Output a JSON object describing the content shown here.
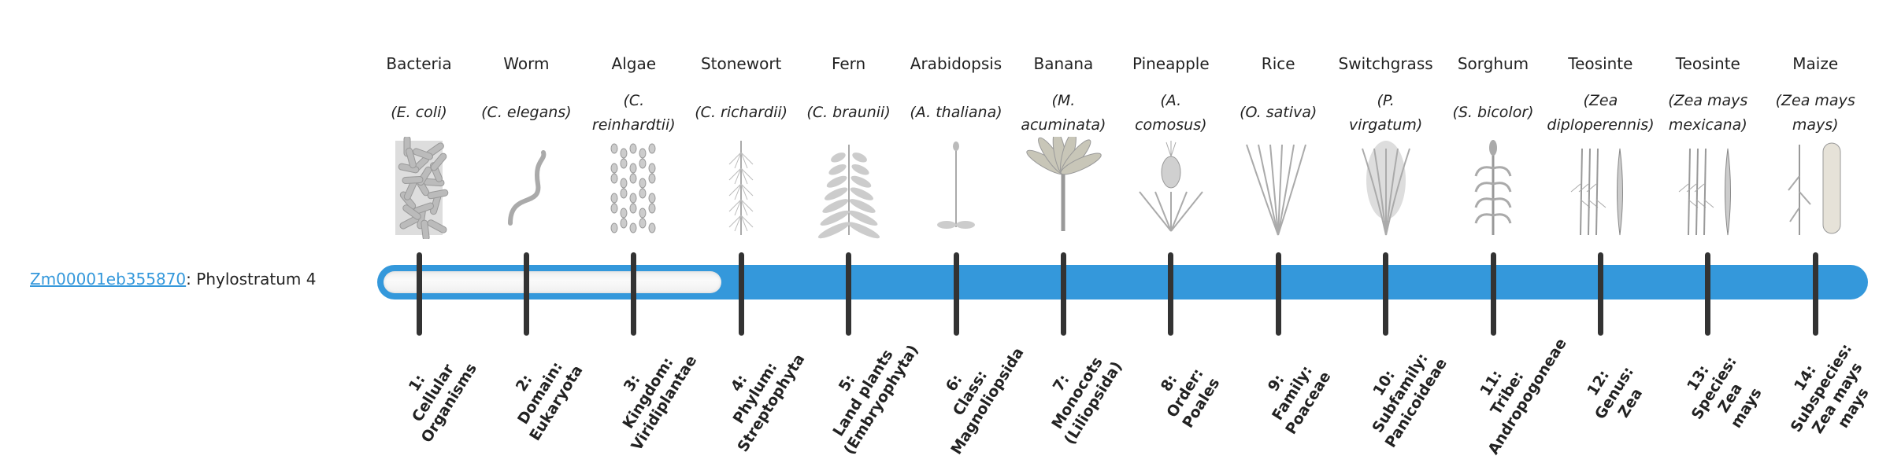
{
  "gene": {
    "id": "Zm00001eb355870",
    "suffix": ": Phylostratum 4"
  },
  "phylostratum": {
    "value": 4,
    "max": 14
  },
  "colors": {
    "bar": "#3498db",
    "tick": "#333333",
    "link": "#3498db"
  },
  "strata": [
    {
      "common": "Bacteria",
      "species": [
        "(E. coli)"
      ],
      "icon": "bacteria-illustration",
      "rank": [
        "1:",
        "Cellular",
        "Organisms"
      ]
    },
    {
      "common": "Worm",
      "species": [
        "(C. elegans)"
      ],
      "icon": "worm-illustration",
      "rank": [
        "2:",
        "Domain:",
        "Eukaryota"
      ]
    },
    {
      "common": "Algae",
      "species": [
        "(C.",
        "reinhardtii)"
      ],
      "icon": "algae-illustration",
      "rank": [
        "3:",
        "Kingdom:",
        "Viridiplantae"
      ]
    },
    {
      "common": "Stonewort",
      "species": [
        "(C. richardii)"
      ],
      "icon": "stonewort-illustration",
      "rank": [
        "4:",
        "Phylum:",
        "Streptophyta"
      ]
    },
    {
      "common": "Fern",
      "species": [
        "(C. braunii)"
      ],
      "icon": "fern-illustration",
      "rank": [
        "5:",
        "Land plants",
        "(Embryophyta)"
      ]
    },
    {
      "common": "Arabidopsis",
      "species": [
        "(A. thaliana)"
      ],
      "icon": "arabidopsis-illustration",
      "rank": [
        "6:",
        "Class:",
        "Magnoliopsida"
      ]
    },
    {
      "common": "Banana",
      "species": [
        "(M.",
        "acuminata)"
      ],
      "icon": "banana-illustration",
      "rank": [
        "7:",
        "Monocots",
        "(Liliopsida)"
      ]
    },
    {
      "common": "Pineapple",
      "species": [
        "(A.",
        "comosus)"
      ],
      "icon": "pineapple-illustration",
      "rank": [
        "8:",
        "Order:",
        "Poales"
      ]
    },
    {
      "common": "Rice",
      "species": [
        "(O. sativa)"
      ],
      "icon": "rice-illustration",
      "rank": [
        "9:",
        "Family:",
        "Poaceae"
      ]
    },
    {
      "common": "Switchgrass",
      "species": [
        "(P.",
        "virgatum)"
      ],
      "icon": "switchgrass-illustration",
      "rank": [
        "10:",
        "Subfamily:",
        "Panicoideae"
      ]
    },
    {
      "common": "Sorghum",
      "species": [
        "(S. bicolor)"
      ],
      "icon": "sorghum-illustration",
      "rank": [
        "11:",
        "Tribe:",
        "Andropogoneae"
      ]
    },
    {
      "common": "Teosinte",
      "species": [
        "(Zea",
        "diploperennis)"
      ],
      "icon": "teosinte-illustration",
      "rank": [
        "12:",
        "Genus:",
        "Zea"
      ]
    },
    {
      "common": "Teosinte",
      "species": [
        "(Zea mays",
        "mexicana)"
      ],
      "icon": "teosinte-illustration",
      "rank": [
        "13:",
        "Species:",
        "Zea",
        "mays"
      ]
    },
    {
      "common": "Maize",
      "species": [
        "(Zea mays",
        "mays)"
      ],
      "icon": "maize-illustration",
      "rank": [
        "14:",
        "Subspecies:",
        "Zea mays",
        "mays"
      ]
    }
  ]
}
